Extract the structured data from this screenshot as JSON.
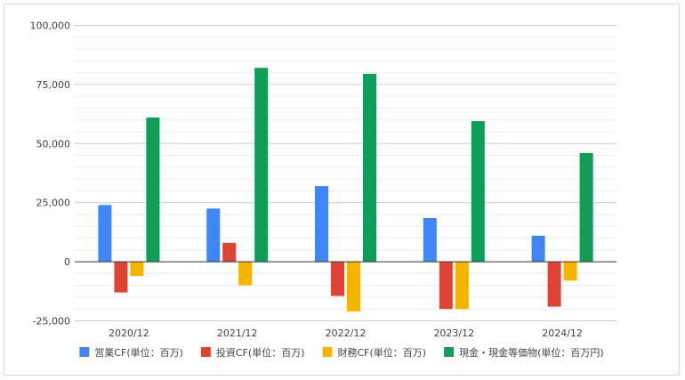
{
  "chart_data": {
    "type": "bar",
    "title": "",
    "xlabel": "",
    "ylabel": "",
    "categories": [
      "2020/12",
      "2021/12",
      "2022/12",
      "2023/12",
      "2024/12"
    ],
    "ylim": [
      -25000,
      100000
    ],
    "yticks": [
      -25000,
      0,
      25000,
      50000,
      75000,
      100000
    ],
    "ytick_labels": [
      "-25,000",
      "0",
      "25,000",
      "50,000",
      "75,000",
      "100,000"
    ],
    "grid": true,
    "legend_position": "bottom",
    "series": [
      {
        "name": "営業CF(単位：百万)",
        "color": "#4285f4",
        "values": [
          24000,
          22500,
          32000,
          18500,
          11000
        ]
      },
      {
        "name": "投資CF(単位：百万)",
        "color": "#db4437",
        "values": [
          -13000,
          8000,
          -14500,
          -20000,
          -19000
        ]
      },
      {
        "name": "財務CF(単位：百万)",
        "color": "#f4b400",
        "values": [
          -6000,
          -10000,
          -21000,
          -20000,
          -8000
        ]
      },
      {
        "name": "現金・現金等価物(単位：百万円)",
        "color": "#0f9d58",
        "values": [
          61000,
          82000,
          79500,
          59500,
          46000
        ]
      }
    ]
  }
}
